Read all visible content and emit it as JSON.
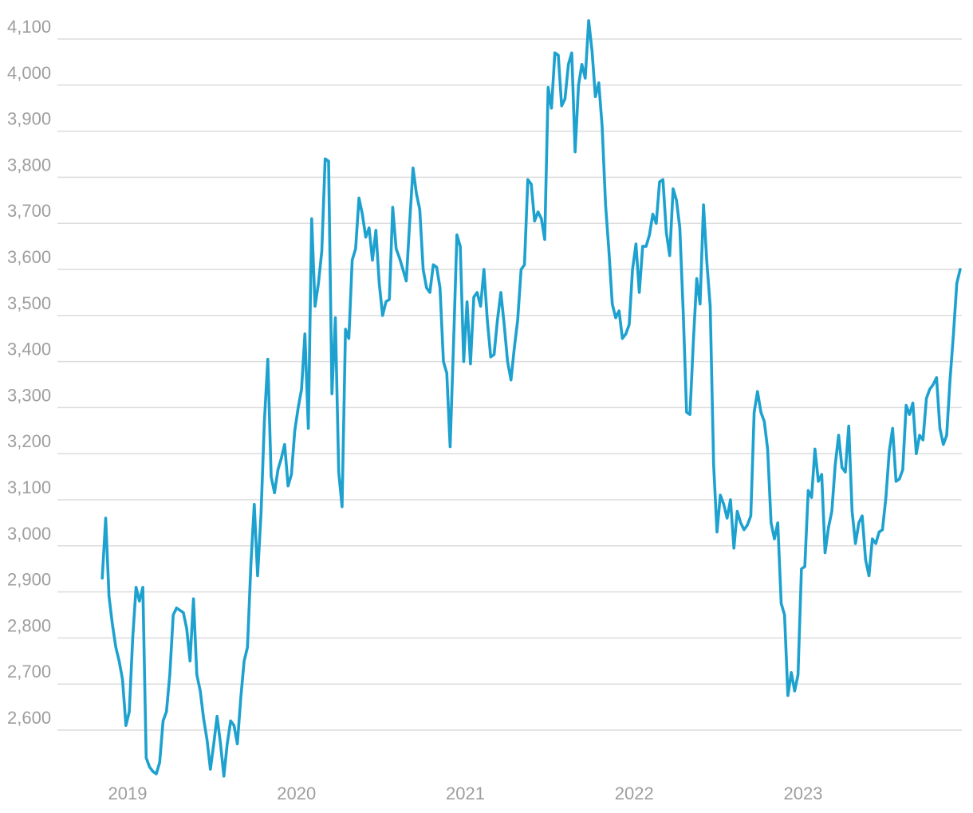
{
  "colors": {
    "line": "#1da1cf",
    "grid": "#dcdcdc",
    "tick_text": "#9e9e9e"
  },
  "chart_data": {
    "type": "line",
    "title": "",
    "xlabel": "",
    "ylabel": "",
    "grid": "horizontal",
    "ylim": [
      2500,
      4100
    ],
    "xlim": [
      2018.5,
      2023.93
    ],
    "y_ticks": [
      2600,
      2700,
      2800,
      2900,
      3000,
      3100,
      3200,
      3300,
      3400,
      3500,
      3600,
      3700,
      3800,
      3900,
      4000,
      4100
    ],
    "y_tick_labels": [
      "2,600",
      "2,700",
      "2,800",
      "2,900",
      "3,000",
      "3,100",
      "3,200",
      "3,300",
      "3,400",
      "3,500",
      "3,600",
      "3,700",
      "3,800",
      "3,900",
      "4,000",
      "4,100"
    ],
    "x_ticks": [
      2019,
      2020,
      2021,
      2022,
      2023
    ],
    "x_tick_labels": [
      "2019",
      "2020",
      "2021",
      "2022",
      "2023"
    ],
    "series": [
      {
        "color": "#1da1cf",
        "points": [
          [
            2018.85,
            2930
          ],
          [
            2018.87,
            3060
          ],
          [
            2018.89,
            2890
          ],
          [
            2018.91,
            2830
          ],
          [
            2018.93,
            2780
          ],
          [
            2018.95,
            2750
          ],
          [
            2018.97,
            2710
          ],
          [
            2018.99,
            2610
          ],
          [
            2019.01,
            2640
          ],
          [
            2019.03,
            2800
          ],
          [
            2019.05,
            2910
          ],
          [
            2019.07,
            2880
          ],
          [
            2019.09,
            2910
          ],
          [
            2019.11,
            2540
          ],
          [
            2019.13,
            2520
          ],
          [
            2019.15,
            2510
          ],
          [
            2019.17,
            2505
          ],
          [
            2019.19,
            2530
          ],
          [
            2019.21,
            2620
          ],
          [
            2019.23,
            2640
          ],
          [
            2019.25,
            2720
          ],
          [
            2019.27,
            2850
          ],
          [
            2019.29,
            2865
          ],
          [
            2019.33,
            2855
          ],
          [
            2019.35,
            2820
          ],
          [
            2019.37,
            2750
          ],
          [
            2019.39,
            2885
          ],
          [
            2019.41,
            2720
          ],
          [
            2019.43,
            2685
          ],
          [
            2019.45,
            2625
          ],
          [
            2019.47,
            2580
          ],
          [
            2019.49,
            2515
          ],
          [
            2019.51,
            2570
          ],
          [
            2019.53,
            2630
          ],
          [
            2019.55,
            2570
          ],
          [
            2019.57,
            2500
          ],
          [
            2019.59,
            2570
          ],
          [
            2019.61,
            2620
          ],
          [
            2019.63,
            2610
          ],
          [
            2019.65,
            2570
          ],
          [
            2019.67,
            2670
          ],
          [
            2019.69,
            2750
          ],
          [
            2019.71,
            2780
          ],
          [
            2019.73,
            2960
          ],
          [
            2019.75,
            3090
          ],
          [
            2019.77,
            2935
          ],
          [
            2019.79,
            3070
          ],
          [
            2019.81,
            3270
          ],
          [
            2019.83,
            3405
          ],
          [
            2019.85,
            3150
          ],
          [
            2019.87,
            3115
          ],
          [
            2019.89,
            3165
          ],
          [
            2019.91,
            3190
          ],
          [
            2019.93,
            3220
          ],
          [
            2019.95,
            3130
          ],
          [
            2019.97,
            3155
          ],
          [
            2019.99,
            3250
          ],
          [
            2020.01,
            3300
          ],
          [
            2020.03,
            3340
          ],
          [
            2020.05,
            3460
          ],
          [
            2020.07,
            3255
          ],
          [
            2020.09,
            3710
          ],
          [
            2020.11,
            3520
          ],
          [
            2020.13,
            3570
          ],
          [
            2020.15,
            3640
          ],
          [
            2020.17,
            3840
          ],
          [
            2020.19,
            3835
          ],
          [
            2020.21,
            3330
          ],
          [
            2020.23,
            3495
          ],
          [
            2020.25,
            3160
          ],
          [
            2020.27,
            3085
          ],
          [
            2020.29,
            3470
          ],
          [
            2020.31,
            3450
          ],
          [
            2020.33,
            3620
          ],
          [
            2020.35,
            3645
          ],
          [
            2020.37,
            3755
          ],
          [
            2020.39,
            3720
          ],
          [
            2020.41,
            3670
          ],
          [
            2020.43,
            3690
          ],
          [
            2020.45,
            3620
          ],
          [
            2020.47,
            3685
          ],
          [
            2020.49,
            3570
          ],
          [
            2020.51,
            3500
          ],
          [
            2020.53,
            3530
          ],
          [
            2020.55,
            3535
          ],
          [
            2020.57,
            3735
          ],
          [
            2020.59,
            3645
          ],
          [
            2020.61,
            3625
          ],
          [
            2020.63,
            3600
          ],
          [
            2020.65,
            3575
          ],
          [
            2020.67,
            3700
          ],
          [
            2020.69,
            3820
          ],
          [
            2020.71,
            3765
          ],
          [
            2020.73,
            3730
          ],
          [
            2020.75,
            3600
          ],
          [
            2020.77,
            3560
          ],
          [
            2020.79,
            3550
          ],
          [
            2020.81,
            3610
          ],
          [
            2020.83,
            3605
          ],
          [
            2020.85,
            3560
          ],
          [
            2020.87,
            3400
          ],
          [
            2020.89,
            3375
          ],
          [
            2020.91,
            3215
          ],
          [
            2020.93,
            3440
          ],
          [
            2020.95,
            3675
          ],
          [
            2020.97,
            3650
          ],
          [
            2020.99,
            3400
          ],
          [
            2021.01,
            3530
          ],
          [
            2021.03,
            3395
          ],
          [
            2021.05,
            3540
          ],
          [
            2021.07,
            3550
          ],
          [
            2021.09,
            3520
          ],
          [
            2021.11,
            3600
          ],
          [
            2021.13,
            3490
          ],
          [
            2021.15,
            3410
          ],
          [
            2021.17,
            3415
          ],
          [
            2021.19,
            3490
          ],
          [
            2021.21,
            3550
          ],
          [
            2021.23,
            3480
          ],
          [
            2021.25,
            3400
          ],
          [
            2021.27,
            3360
          ],
          [
            2021.29,
            3430
          ],
          [
            2021.31,
            3490
          ],
          [
            2021.33,
            3600
          ],
          [
            2021.35,
            3610
          ],
          [
            2021.37,
            3795
          ],
          [
            2021.39,
            3785
          ],
          [
            2021.41,
            3705
          ],
          [
            2021.43,
            3725
          ],
          [
            2021.45,
            3710
          ],
          [
            2021.47,
            3665
          ],
          [
            2021.49,
            3995
          ],
          [
            2021.51,
            3950
          ],
          [
            2021.53,
            4070
          ],
          [
            2021.55,
            4065
          ],
          [
            2021.57,
            3955
          ],
          [
            2021.59,
            3970
          ],
          [
            2021.61,
            4045
          ],
          [
            2021.63,
            4070
          ],
          [
            2021.65,
            3855
          ],
          [
            2021.67,
            4000
          ],
          [
            2021.69,
            4045
          ],
          [
            2021.71,
            4015
          ],
          [
            2021.73,
            4140
          ],
          [
            2021.75,
            4075
          ],
          [
            2021.77,
            3975
          ],
          [
            2021.79,
            4005
          ],
          [
            2021.81,
            3910
          ],
          [
            2021.83,
            3740
          ],
          [
            2021.85,
            3640
          ],
          [
            2021.87,
            3525
          ],
          [
            2021.89,
            3495
          ],
          [
            2021.91,
            3510
          ],
          [
            2021.93,
            3450
          ],
          [
            2021.95,
            3460
          ],
          [
            2021.97,
            3480
          ],
          [
            2021.99,
            3600
          ],
          [
            2022.01,
            3655
          ],
          [
            2022.03,
            3550
          ],
          [
            2022.05,
            3650
          ],
          [
            2022.07,
            3650
          ],
          [
            2022.09,
            3675
          ],
          [
            2022.11,
            3720
          ],
          [
            2022.13,
            3700
          ],
          [
            2022.15,
            3790
          ],
          [
            2022.17,
            3795
          ],
          [
            2022.19,
            3680
          ],
          [
            2022.21,
            3630
          ],
          [
            2022.23,
            3775
          ],
          [
            2022.25,
            3750
          ],
          [
            2022.27,
            3690
          ],
          [
            2022.29,
            3505
          ],
          [
            2022.31,
            3290
          ],
          [
            2022.33,
            3285
          ],
          [
            2022.35,
            3445
          ],
          [
            2022.37,
            3580
          ],
          [
            2022.39,
            3525
          ],
          [
            2022.41,
            3740
          ],
          [
            2022.43,
            3615
          ],
          [
            2022.45,
            3520
          ],
          [
            2022.47,
            3175
          ],
          [
            2022.49,
            3030
          ],
          [
            2022.51,
            3110
          ],
          [
            2022.53,
            3090
          ],
          [
            2022.55,
            3060
          ],
          [
            2022.57,
            3100
          ],
          [
            2022.59,
            2995
          ],
          [
            2022.61,
            3075
          ],
          [
            2022.63,
            3050
          ],
          [
            2022.65,
            3035
          ],
          [
            2022.67,
            3045
          ],
          [
            2022.69,
            3065
          ],
          [
            2022.71,
            3290
          ],
          [
            2022.73,
            3335
          ],
          [
            2022.75,
            3290
          ],
          [
            2022.77,
            3270
          ],
          [
            2022.79,
            3210
          ],
          [
            2022.81,
            3050
          ],
          [
            2022.83,
            3015
          ],
          [
            2022.85,
            3050
          ],
          [
            2022.87,
            2875
          ],
          [
            2022.89,
            2850
          ],
          [
            2022.91,
            2675
          ],
          [
            2022.93,
            2725
          ],
          [
            2022.95,
            2685
          ],
          [
            2022.97,
            2720
          ],
          [
            2022.99,
            2950
          ],
          [
            2023.01,
            2955
          ],
          [
            2023.03,
            3120
          ],
          [
            2023.05,
            3105
          ],
          [
            2023.07,
            3210
          ],
          [
            2023.09,
            3140
          ],
          [
            2023.11,
            3155
          ],
          [
            2023.13,
            2985
          ],
          [
            2023.15,
            3040
          ],
          [
            2023.17,
            3075
          ],
          [
            2023.19,
            3175
          ],
          [
            2023.21,
            3240
          ],
          [
            2023.23,
            3170
          ],
          [
            2023.25,
            3160
          ],
          [
            2023.27,
            3260
          ],
          [
            2023.29,
            3075
          ],
          [
            2023.31,
            3005
          ],
          [
            2023.33,
            3050
          ],
          [
            2023.35,
            3065
          ],
          [
            2023.37,
            2970
          ],
          [
            2023.39,
            2935
          ],
          [
            2023.41,
            3015
          ],
          [
            2023.43,
            3005
          ],
          [
            2023.45,
            3030
          ],
          [
            2023.47,
            3035
          ],
          [
            2023.49,
            3105
          ],
          [
            2023.51,
            3205
          ],
          [
            2023.53,
            3255
          ],
          [
            2023.55,
            3140
          ],
          [
            2023.57,
            3145
          ],
          [
            2023.59,
            3165
          ],
          [
            2023.61,
            3305
          ],
          [
            2023.63,
            3285
          ],
          [
            2023.65,
            3310
          ],
          [
            2023.67,
            3200
          ],
          [
            2023.69,
            3240
          ],
          [
            2023.71,
            3230
          ],
          [
            2023.73,
            3320
          ],
          [
            2023.75,
            3340
          ],
          [
            2023.77,
            3350
          ],
          [
            2023.79,
            3365
          ],
          [
            2023.81,
            3255
          ],
          [
            2023.83,
            3220
          ],
          [
            2023.85,
            3240
          ],
          [
            2023.87,
            3360
          ],
          [
            2023.89,
            3460
          ],
          [
            2023.91,
            3570
          ],
          [
            2023.93,
            3600
          ]
        ]
      }
    ]
  }
}
